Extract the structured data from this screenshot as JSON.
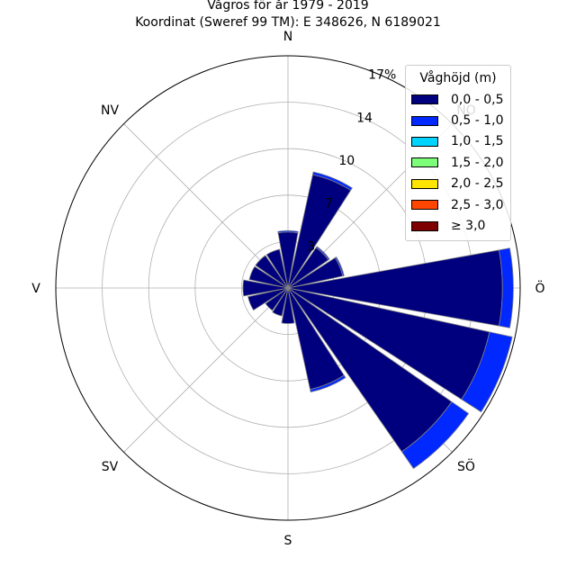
{
  "chart_data": {
    "type": "polar-stacked-bar",
    "title": "Vågros för år 1979 - 2019",
    "subtitle": "Koordinat (Sweref 99 TM): E 348626, N 6189021",
    "legend_title": "Våghöjd (m)",
    "legend_placement": "top-right",
    "direction_labels": [
      "N",
      "NO",
      "Ö",
      "SÖ",
      "S",
      "SV",
      "V",
      "NV"
    ],
    "radial_ticks": [
      "3",
      "7",
      "10",
      "14",
      "17%"
    ],
    "radial_tick_values": [
      3.4,
      6.8,
      10.2,
      13.6,
      17.0
    ],
    "rmax": 17,
    "bins": [
      {
        "label": "0,0 - 0,5",
        "color": "#00007f"
      },
      {
        "label": "0,5 - 1,0",
        "color": "#0028ff"
      },
      {
        "label": "1,0 - 1,5",
        "color": "#00d4ff"
      },
      {
        "label": "1,5 - 2,0",
        "color": "#7dff7a"
      },
      {
        "label": "2,0 - 2,5",
        "color": "#ffe500"
      },
      {
        "label": "2,5 - 3,0",
        "color": "#ff4600"
      },
      {
        "label": "≥ 3,0",
        "color": "#7f0000"
      }
    ],
    "sectors": [
      {
        "direction_deg": 0,
        "values": [
          4.1,
          0.1
        ]
      },
      {
        "direction_deg": 22.5,
        "values": [
          8.5,
          0.2
        ]
      },
      {
        "direction_deg": 45,
        "values": [
          3.6,
          0.1
        ]
      },
      {
        "direction_deg": 67.5,
        "values": [
          4.1,
          0.1
        ]
      },
      {
        "direction_deg": 90,
        "values": [
          15.7,
          0.8
        ]
      },
      {
        "direction_deg": 112.5,
        "values": [
          15.1,
          1.7
        ]
      },
      {
        "direction_deg": 135,
        "values": [
          14.6,
          1.5
        ]
      },
      {
        "direction_deg": 157.5,
        "values": [
          7.6,
          0.2
        ]
      },
      {
        "direction_deg": 180,
        "values": [
          2.6
        ]
      },
      {
        "direction_deg": 202.5,
        "values": [
          2.1
        ]
      },
      {
        "direction_deg": 225,
        "values": [
          2.0
        ]
      },
      {
        "direction_deg": 247.5,
        "values": [
          3.0
        ]
      },
      {
        "direction_deg": 270,
        "values": [
          3.3
        ]
      },
      {
        "direction_deg": 292.5,
        "values": [
          2.9
        ]
      },
      {
        "direction_deg": 315,
        "values": [
          2.9
        ]
      },
      {
        "direction_deg": 337.5,
        "values": [
          2.9
        ]
      }
    ]
  }
}
